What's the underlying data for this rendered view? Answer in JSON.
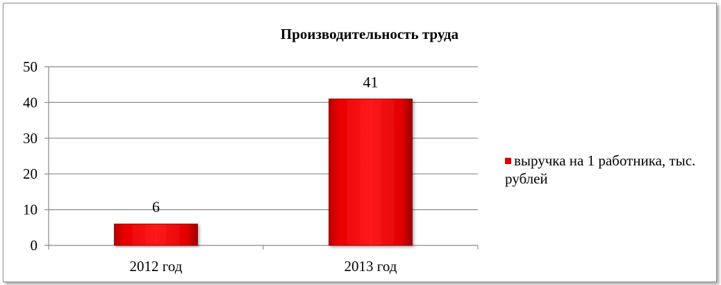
{
  "chart_data": {
    "type": "bar",
    "title": "Производительность труда",
    "categories": [
      "2012 год",
      "2013 год"
    ],
    "series": [
      {
        "name": "выручка на 1 работника, тыс. рублей",
        "values": [
          6,
          41
        ],
        "color": "#e00000"
      }
    ],
    "ylim": [
      0,
      50
    ],
    "yticks": [
      0,
      10,
      20,
      30,
      40,
      50
    ],
    "grid": true,
    "legend_position": "right",
    "data_labels": true
  }
}
